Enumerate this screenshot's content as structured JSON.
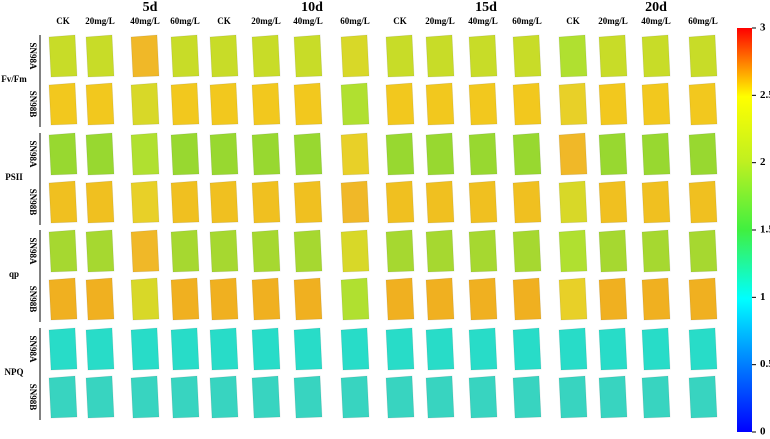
{
  "days": [
    {
      "label": "5d",
      "columns": [
        "CK",
        "20mg/L",
        "40mg/L",
        "60mg/L"
      ]
    },
    {
      "label": "10d",
      "columns": [
        "CK",
        "20mg/L",
        "40mg/L",
        "60mg/L"
      ]
    },
    {
      "label": "15d",
      "columns": [
        "CK",
        "20mg/L",
        "40mg/L",
        "60mg/L"
      ]
    },
    {
      "label": "20d",
      "columns": [
        "CK",
        "20mg/L",
        "40mg/L",
        "60mg/L"
      ]
    }
  ],
  "groups": [
    {
      "label": "Fv/Fm",
      "cultivars": [
        "SN98A",
        "SN98B"
      ]
    },
    {
      "label": "PSII",
      "cultivars": [
        "SN98A",
        "SN98B"
      ]
    },
    {
      "label": "qp",
      "cultivars": [
        "SN98A",
        "SN98B"
      ]
    },
    {
      "label": "NPQ",
      "cultivars": [
        "SN98A",
        "SN98B"
      ]
    }
  ],
  "colorbar": {
    "ticks": [
      0,
      0.5,
      1,
      1.5,
      2,
      2.5,
      3
    ]
  }
}
